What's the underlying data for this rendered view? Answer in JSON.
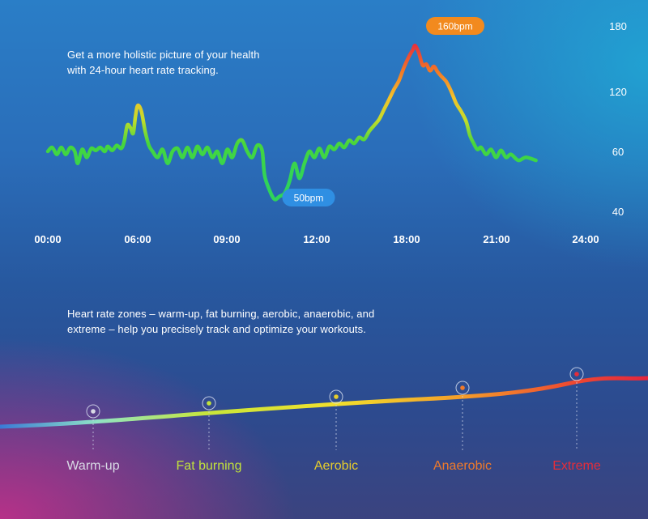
{
  "heart_rate_caption": "Get a more holistic picture of your health with 24-hour heart rate tracking.",
  "zones_caption": "Heart rate zones – warm-up, fat burning, aerobic, anaerobic, and extreme – help you precisely track and optimize your workouts.",
  "chart_data": [
    {
      "type": "line",
      "x_ticks": [
        "00:00",
        "06:00",
        "09:00",
        "12:00",
        "18:00",
        "21:00",
        "24:00"
      ],
      "y_ticks": [
        40,
        60,
        120,
        180
      ],
      "callouts": [
        {
          "label": "160bpm",
          "hour": 19.6,
          "bpm": 160,
          "color": "#f28a1e"
        },
        {
          "label": "50bpm",
          "hour": 11.9,
          "bpm": 50,
          "color": "#2f8fe3"
        }
      ],
      "series": [
        {
          "points": [
            [
              0,
              60
            ],
            [
              0.3,
              64
            ],
            [
              0.6,
              59
            ],
            [
              0.9,
              64
            ],
            [
              1.2,
              59
            ],
            [
              1.5,
              64
            ],
            [
              1.8,
              60
            ],
            [
              2.0,
              56
            ],
            [
              2.3,
              62
            ],
            [
              2.6,
              58
            ],
            [
              2.9,
              63
            ],
            [
              3.2,
              61
            ],
            [
              3.5,
              64
            ],
            [
              3.8,
              60
            ],
            [
              4.0,
              65
            ],
            [
              4.3,
              61
            ],
            [
              4.6,
              66
            ],
            [
              4.9,
              63
            ],
            [
              5.1,
              70
            ],
            [
              5.3,
              86
            ],
            [
              5.5,
              84
            ],
            [
              5.7,
              78
            ],
            [
              5.85,
              95
            ],
            [
              6.0,
              106
            ],
            [
              6.15,
              100
            ],
            [
              6.3,
              80
            ],
            [
              6.45,
              66
            ],
            [
              6.6,
              60
            ],
            [
              6.8,
              58
            ],
            [
              7.0,
              62
            ],
            [
              7.2,
              56
            ],
            [
              7.4,
              60
            ],
            [
              7.6,
              63
            ],
            [
              7.8,
              58
            ],
            [
              8.0,
              64
            ],
            [
              8.2,
              58
            ],
            [
              8.4,
              65
            ],
            [
              8.6,
              59
            ],
            [
              8.8,
              64
            ],
            [
              9.0,
              58
            ],
            [
              9.2,
              60
            ],
            [
              9.4,
              56
            ],
            [
              9.6,
              62
            ],
            [
              9.8,
              58
            ],
            [
              10.0,
              68
            ],
            [
              10.2,
              71
            ],
            [
              10.4,
              60
            ],
            [
              10.6,
              58
            ],
            [
              10.8,
              66
            ],
            [
              11.0,
              61
            ],
            [
              11.1,
              52
            ],
            [
              11.3,
              47
            ],
            [
              11.5,
              44
            ],
            [
              11.7,
              45
            ],
            [
              11.9,
              46
            ],
            [
              12.1,
              50
            ],
            [
              12.3,
              56
            ],
            [
              12.5,
              51
            ],
            [
              12.7,
              56
            ],
            [
              12.9,
              60
            ],
            [
              13.1,
              58
            ],
            [
              13.3,
              63
            ],
            [
              13.5,
              58
            ],
            [
              13.7,
              65
            ],
            [
              13.9,
              62
            ],
            [
              14.1,
              68
            ],
            [
              14.3,
              64
            ],
            [
              14.5,
              71
            ],
            [
              14.7,
              68
            ],
            [
              14.9,
              74
            ],
            [
              15.1,
              72
            ],
            [
              15.3,
              80
            ],
            [
              15.5,
              86
            ],
            [
              15.7,
              92
            ],
            [
              15.9,
              102
            ],
            [
              16.1,
              112
            ],
            [
              16.3,
              122
            ],
            [
              16.5,
              130
            ],
            [
              16.7,
              142
            ],
            [
              16.9,
              152
            ],
            [
              17.05,
              158
            ],
            [
              17.15,
              162
            ],
            [
              17.3,
              155
            ],
            [
              17.45,
              144
            ],
            [
              17.6,
              145
            ],
            [
              17.75,
              139
            ],
            [
              17.9,
              143
            ],
            [
              18.05,
              138
            ],
            [
              18.2,
              134
            ],
            [
              18.4,
              129
            ],
            [
              18.6,
              120
            ],
            [
              18.8,
              108
            ],
            [
              19.0,
              100
            ],
            [
              19.2,
              90
            ],
            [
              19.35,
              76
            ],
            [
              19.5,
              68
            ],
            [
              19.65,
              62
            ],
            [
              19.8,
              64
            ],
            [
              20.0,
              59
            ],
            [
              20.2,
              62
            ],
            [
              20.4,
              58
            ],
            [
              20.6,
              61
            ],
            [
              20.8,
              58
            ],
            [
              21.0,
              59
            ],
            [
              21.3,
              57
            ],
            [
              21.6,
              58
            ],
            [
              22.0,
              57
            ]
          ]
        }
      ]
    },
    {
      "type": "line",
      "categories": [
        "Warm-up",
        "Fat burning",
        "Aerobic",
        "Anaerobic",
        "Extreme"
      ],
      "colors": [
        "#d9dbe6",
        "#c2e23c",
        "#e6cd2c",
        "#f07a2a",
        "#e52d3a"
      ]
    }
  ]
}
